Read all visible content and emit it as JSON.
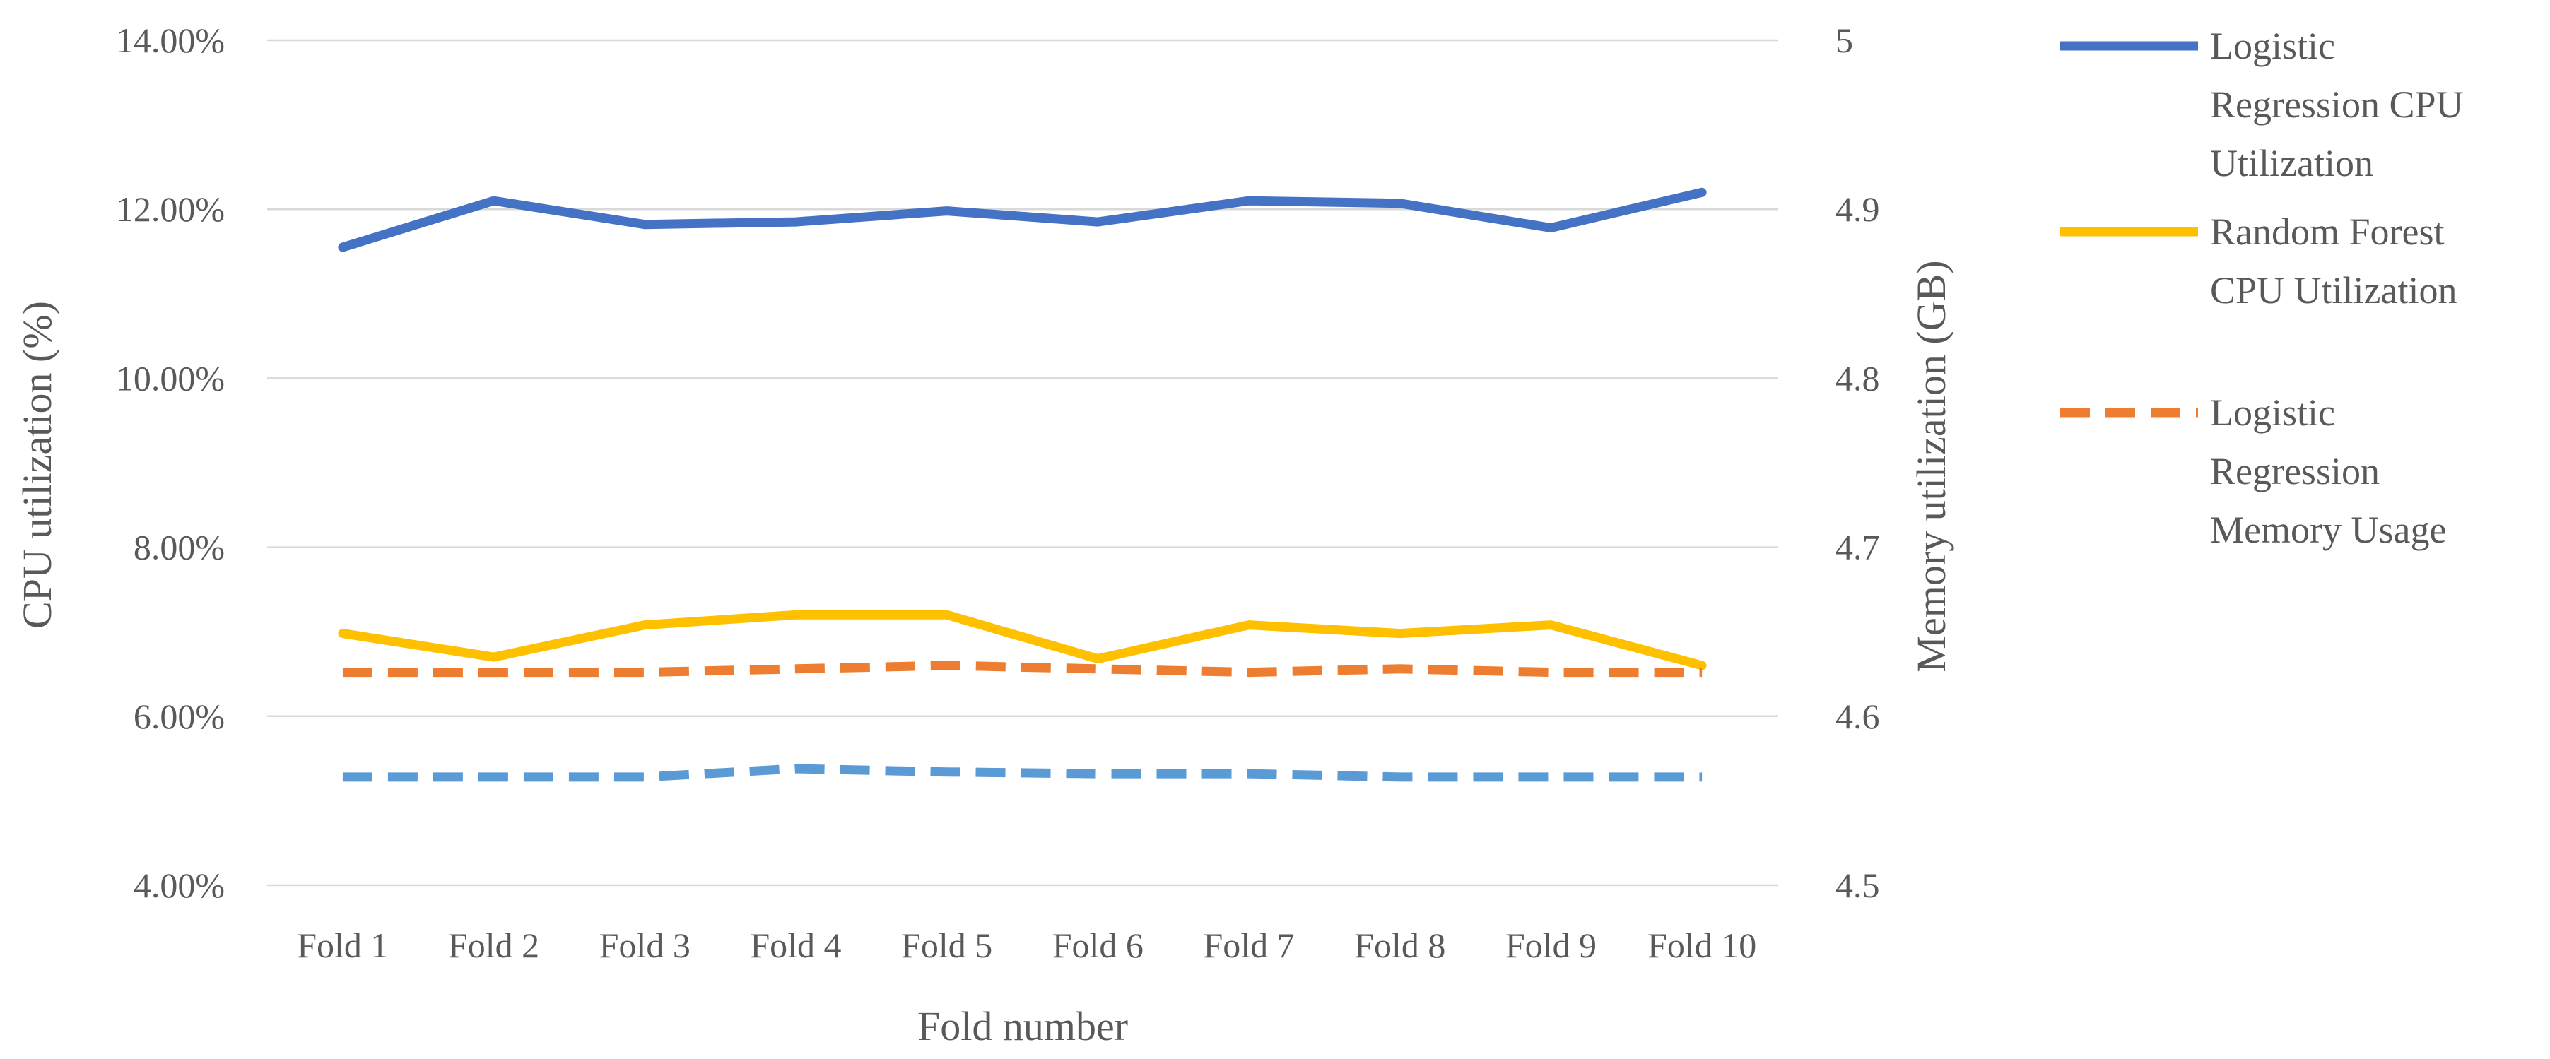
{
  "chart_data": {
    "type": "line",
    "xlabel": "Fold number",
    "ylabel": "CPU utilization (%)",
    "y2label": "Memory utilization (GB)",
    "categories": [
      "Fold 1",
      "Fold 2",
      "Fold 3",
      "Fold 4",
      "Fold 5",
      "Fold 6",
      "Fold 7",
      "Fold 8",
      "Fold 9",
      "Fold 10"
    ],
    "ylim": [
      4,
      14
    ],
    "y2lim": [
      4.5,
      5
    ],
    "y_ticks": [
      "4.00%",
      "6.00%",
      "8.00%",
      "10.00%",
      "12.00%",
      "14.00%"
    ],
    "y2_ticks": [
      "4.5",
      "4.6",
      "4.7",
      "4.8",
      "4.9",
      "5"
    ],
    "grid": true,
    "legend_position": "right",
    "series": [
      {
        "name": "Logistic Regression CPU Utilization",
        "legend_lines": [
          "Logistic",
          "Regression CPU",
          "Utilization"
        ],
        "axis": "left",
        "style": "solid",
        "color": "#4472c4",
        "values": [
          11.55,
          12.1,
          11.82,
          11.85,
          11.98,
          11.85,
          12.1,
          12.07,
          11.78,
          12.2
        ]
      },
      {
        "name": "Random Forest CPU Utilization",
        "legend_lines": [
          "Random Forest",
          "CPU Utilization"
        ],
        "axis": "left",
        "style": "solid",
        "color": "#ffc000",
        "values": [
          6.98,
          6.7,
          7.08,
          7.2,
          7.2,
          6.68,
          7.08,
          6.98,
          7.08,
          6.6
        ]
      },
      {
        "name": "Logistic Regression Memory Usage",
        "legend_lines": [
          "Logistic",
          "Regression",
          "Memory Usage"
        ],
        "axis": "right",
        "style": "dashed",
        "color": "#ed7d31",
        "values": [
          4.626,
          4.626,
          4.626,
          4.628,
          4.63,
          4.628,
          4.626,
          4.628,
          4.626,
          4.626
        ]
      },
      {
        "name": "",
        "legend_lines": [],
        "axis": "right",
        "style": "dashed",
        "color": "#5b9bd5",
        "values": [
          4.564,
          4.564,
          4.564,
          4.569,
          4.567,
          4.566,
          4.566,
          4.564,
          4.564,
          4.564
        ]
      }
    ]
  }
}
